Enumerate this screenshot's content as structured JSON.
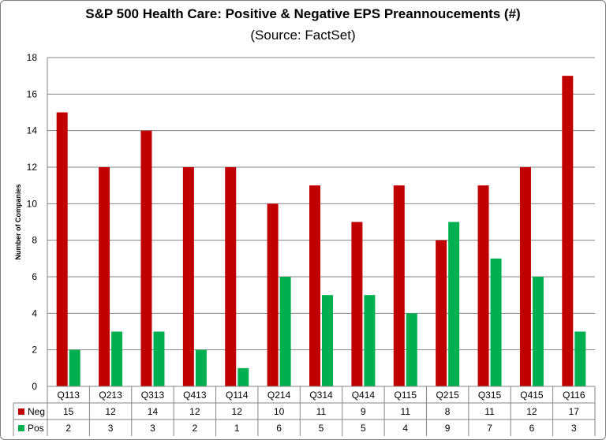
{
  "chart_data": {
    "type": "bar",
    "title": "S&P 500 Health Care: Positive & Negative EPS Preannoucements (#)",
    "subtitle": "(Source: FactSet)",
    "xlabel": "",
    "ylabel": "Number of Companies",
    "ylim": [
      0,
      18
    ],
    "yticks": [
      0,
      2,
      4,
      6,
      8,
      10,
      12,
      14,
      16,
      18
    ],
    "grid": true,
    "categories": [
      "Q113",
      "Q213",
      "Q313",
      "Q413",
      "Q114",
      "Q214",
      "Q314",
      "Q414",
      "Q115",
      "Q215",
      "Q315",
      "Q415",
      "Q116"
    ],
    "series": [
      {
        "name": "Neg",
        "color": "#c00000",
        "values": [
          15,
          12,
          14,
          12,
          12,
          10,
          11,
          9,
          11,
          8,
          11,
          12,
          17
        ]
      },
      {
        "name": "Pos",
        "color": "#00b050",
        "values": [
          2,
          3,
          3,
          2,
          1,
          6,
          5,
          5,
          4,
          9,
          7,
          6,
          3
        ]
      }
    ],
    "legend": "data-table"
  }
}
